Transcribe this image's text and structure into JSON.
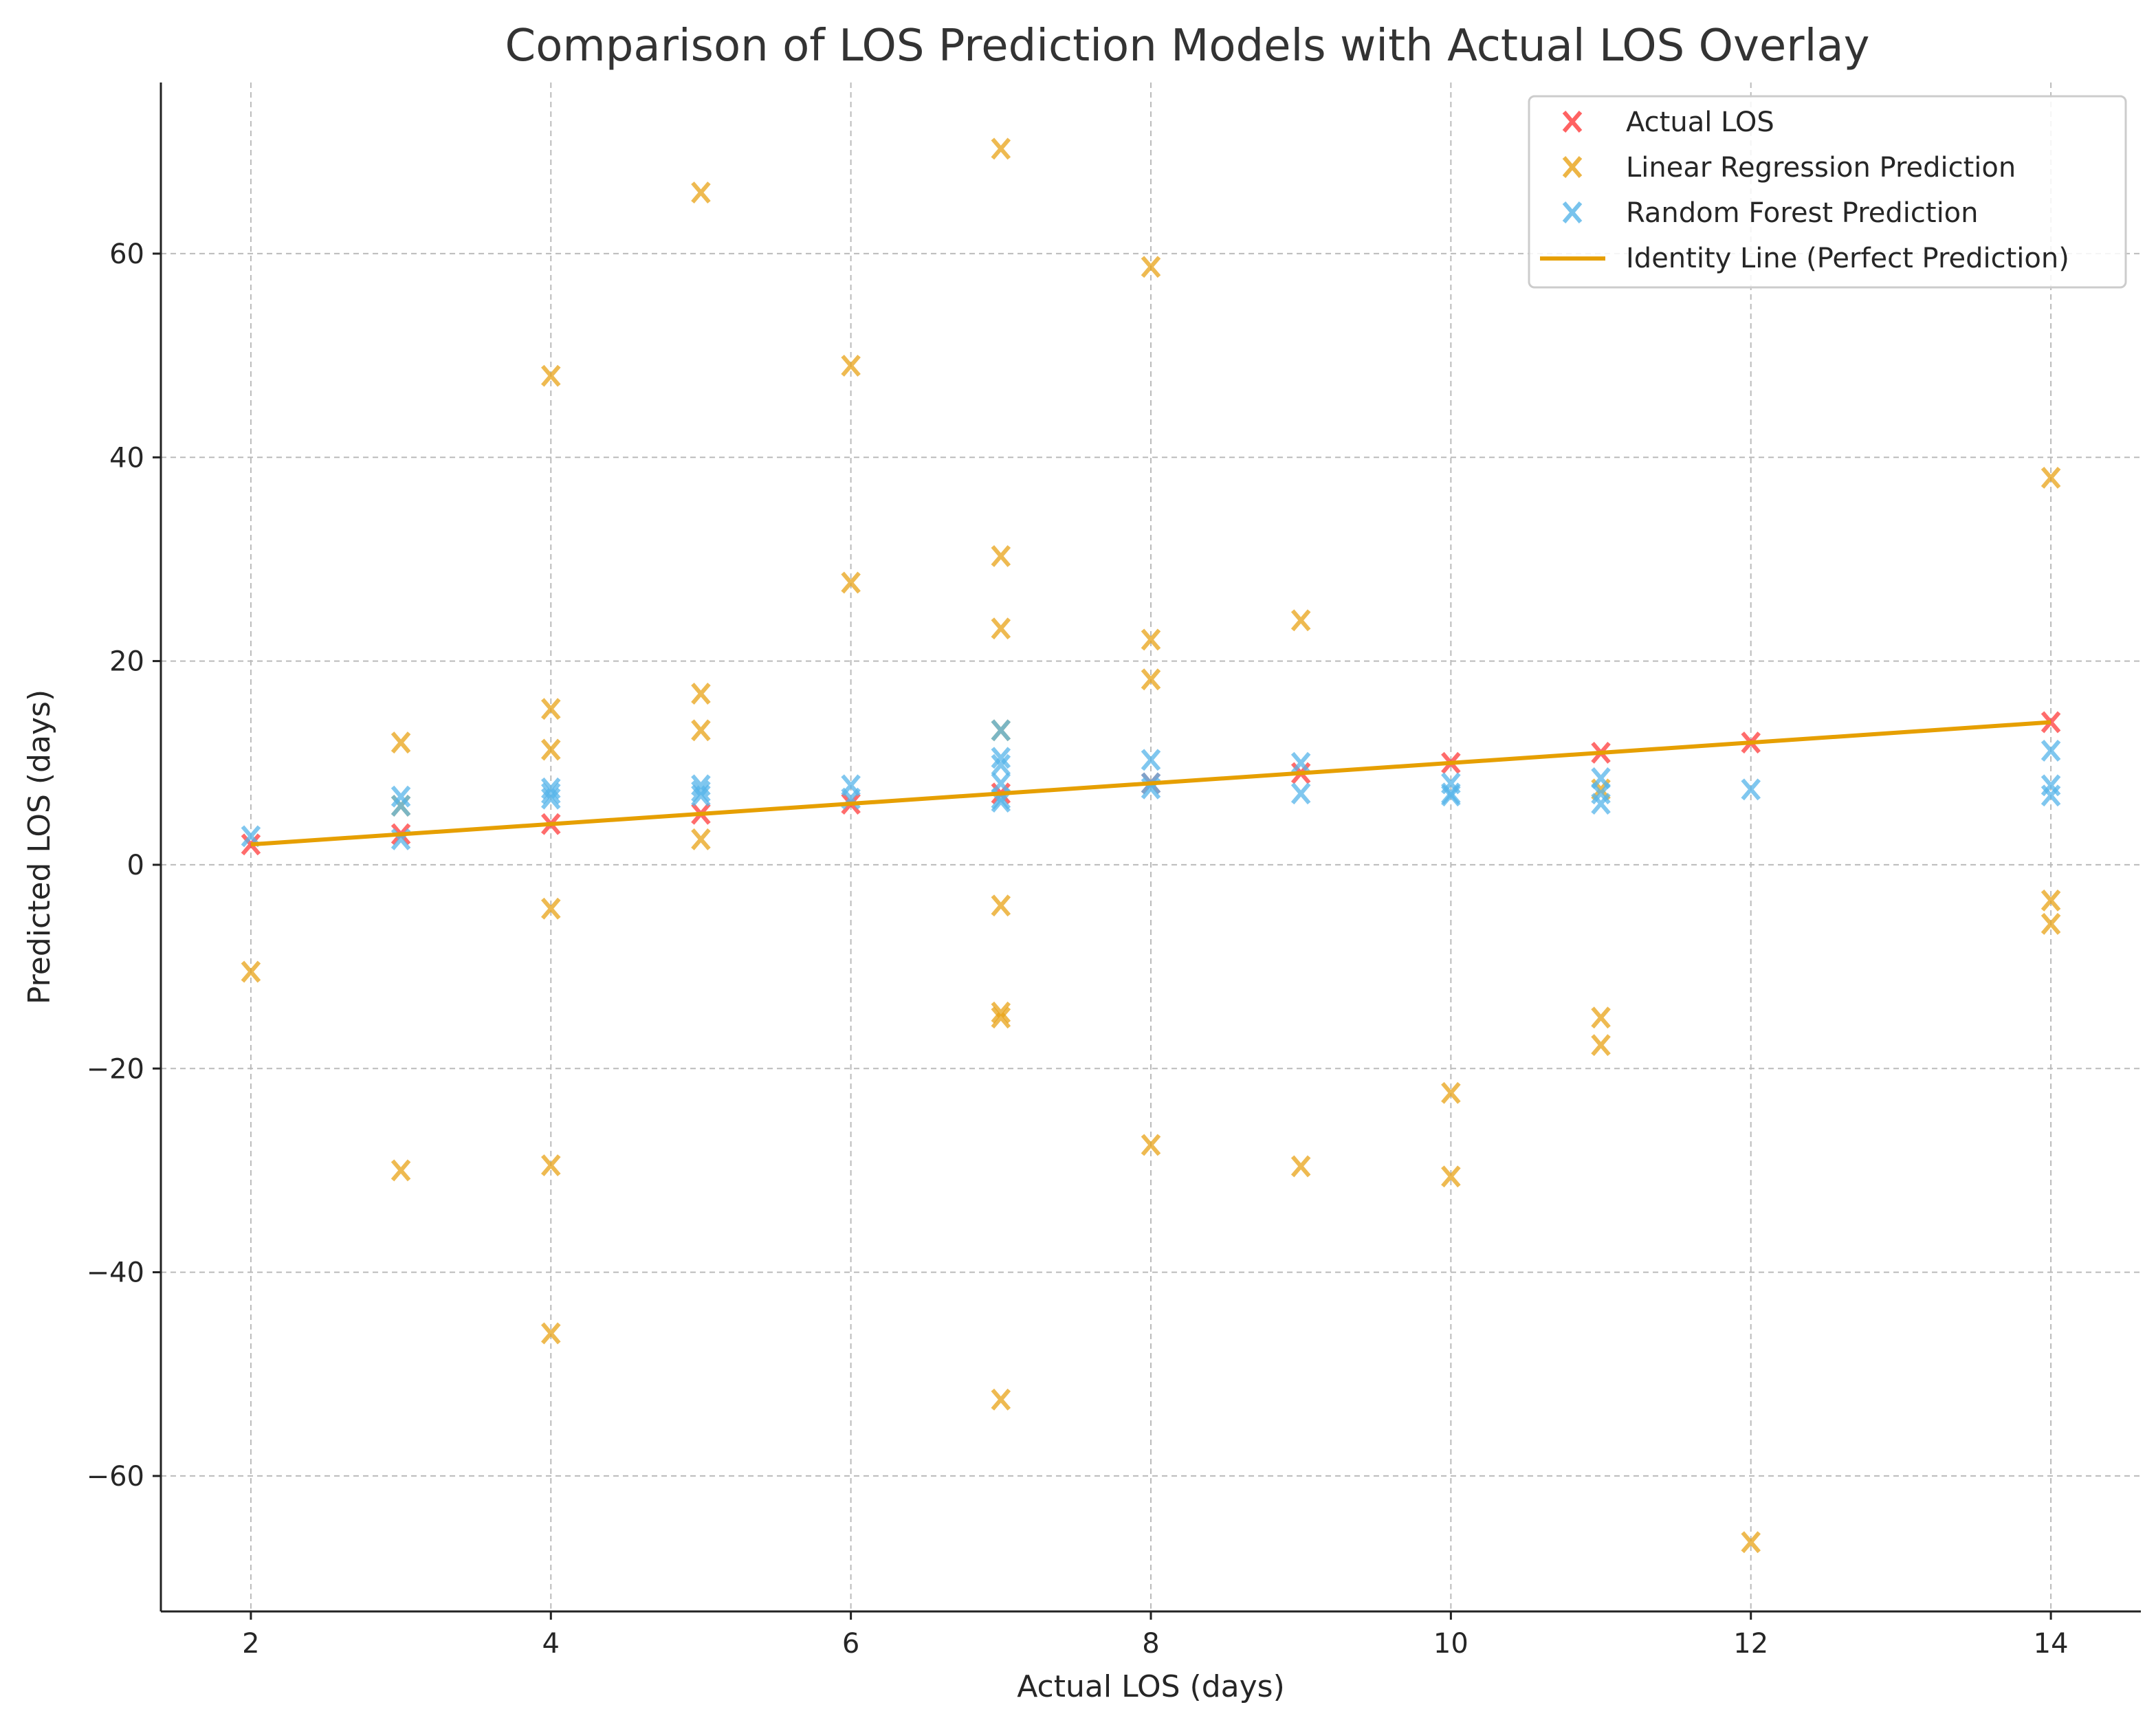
{
  "chart_data": {
    "type": "scatter",
    "title": "Comparison of LOS Prediction Models with Actual LOS Overlay",
    "xlabel": "Actual LOS (days)",
    "ylabel": "Predicted LOS (days)",
    "xlim": [
      1.4,
      14.6
    ],
    "ylim": [
      -73.3,
      76.8
    ],
    "xticks": [
      2,
      4,
      6,
      8,
      10,
      12,
      14
    ],
    "yticks": [
      -60,
      -40,
      -20,
      0,
      20,
      40,
      60
    ],
    "xtick_labels": [
      "2",
      "4",
      "6",
      "8",
      "10",
      "12",
      "14"
    ],
    "ytick_labels": [
      "−60",
      "−40",
      "−20",
      "0",
      "20",
      "40",
      "60"
    ],
    "grid": true,
    "legend_position": "top-right",
    "series": [
      {
        "name": "Actual LOS",
        "marker": "x",
        "color": "#ff3b3b",
        "points": [
          [
            2,
            2
          ],
          [
            3,
            3
          ],
          [
            4,
            4
          ],
          [
            5,
            5
          ],
          [
            6,
            6
          ],
          [
            7,
            7
          ],
          [
            8,
            8
          ],
          [
            9,
            9
          ],
          [
            10,
            10
          ],
          [
            11,
            11
          ],
          [
            12,
            12
          ],
          [
            14,
            14
          ]
        ]
      },
      {
        "name": "Linear Regression Prediction",
        "marker": "x",
        "color": "#e8a317",
        "points": [
          [
            2,
            -10.5
          ],
          [
            3,
            12
          ],
          [
            3,
            -30
          ],
          [
            4,
            48
          ],
          [
            4,
            15.3
          ],
          [
            4,
            11.3
          ],
          [
            4,
            -4.3
          ],
          [
            4,
            -29.5
          ],
          [
            4,
            -46
          ],
          [
            5,
            66
          ],
          [
            5,
            16.8
          ],
          [
            5,
            13.2
          ],
          [
            5,
            2.5
          ],
          [
            6,
            49
          ],
          [
            6,
            27.7
          ],
          [
            7,
            70.3
          ],
          [
            7,
            30.3
          ],
          [
            7,
            23.2
          ],
          [
            7,
            -4
          ],
          [
            7,
            -14.5
          ],
          [
            7,
            -15
          ],
          [
            7,
            -52.5
          ],
          [
            8,
            58.7
          ],
          [
            8,
            22.1
          ],
          [
            8,
            18.2
          ],
          [
            8,
            -27.5
          ],
          [
            9,
            24
          ],
          [
            9,
            -29.6
          ],
          [
            10,
            -22.4
          ],
          [
            10,
            -30.6
          ],
          [
            11,
            7.4
          ],
          [
            11,
            -15
          ],
          [
            11,
            -17.7
          ],
          [
            12,
            -66.5
          ],
          [
            14,
            38
          ],
          [
            14,
            -3.5
          ],
          [
            14,
            -5.8
          ],
          [
            3,
            5.8
          ],
          [
            7,
            13.2
          ]
        ]
      },
      {
        "name": "Random Forest Prediction",
        "marker": "x",
        "color": "#56b4e9",
        "points": [
          [
            2,
            2.8
          ],
          [
            3,
            6.7
          ],
          [
            3,
            2.5
          ],
          [
            3,
            5.8
          ],
          [
            4,
            7.5
          ],
          [
            4,
            7
          ],
          [
            4,
            6.5
          ],
          [
            5,
            7.8
          ],
          [
            5,
            7.2
          ],
          [
            5,
            6.8
          ],
          [
            6,
            7.8
          ],
          [
            6,
            6.5
          ],
          [
            7,
            13.2
          ],
          [
            7,
            10.5
          ],
          [
            7,
            9.8
          ],
          [
            7,
            8
          ],
          [
            7,
            6.5
          ],
          [
            7,
            6.2
          ],
          [
            8,
            10.3
          ],
          [
            8,
            8
          ],
          [
            8,
            7.5
          ],
          [
            9,
            10
          ],
          [
            9,
            7
          ],
          [
            10,
            8
          ],
          [
            10,
            7
          ],
          [
            10,
            6.8
          ],
          [
            11,
            8.5
          ],
          [
            11,
            7
          ],
          [
            11,
            6
          ],
          [
            12,
            7.4
          ],
          [
            14,
            11.2
          ],
          [
            14,
            7.8
          ],
          [
            14,
            6.8
          ]
        ]
      },
      {
        "name": "Identity Line (Perfect Prediction)",
        "type": "line",
        "color": "#e69f00",
        "points": [
          [
            2,
            2
          ],
          [
            14,
            14
          ]
        ]
      }
    ]
  }
}
